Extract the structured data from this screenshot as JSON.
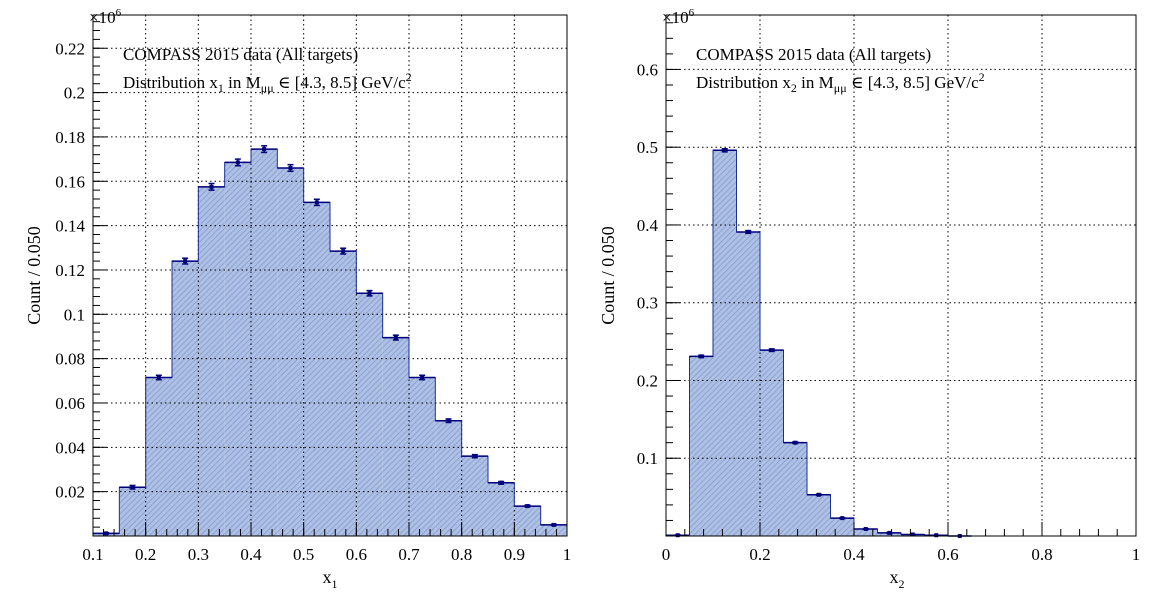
{
  "chart_data": [
    {
      "type": "bar",
      "panel": "left",
      "xlim": [
        0.1,
        1.0
      ],
      "ylim": [
        0,
        0.235
      ],
      "y_multiplier": "×10",
      "y_multiplier_exp": "6",
      "ylabel": "Count / 0.050",
      "xlabel": "x",
      "xlabel_sub": "1",
      "grid": true,
      "legend_placement": "top-left",
      "legend": [
        {
          "main": "COMPASS 2015 data (All targets)"
        },
        {
          "main": "Distribution x",
          "sub": "1",
          "mid": " in M",
          "sub2": "μμ",
          "tail": " ∈ [4.3, 8.5] GeV/c",
          "sup": "2"
        }
      ],
      "xticks": [
        0.1,
        0.2,
        0.3,
        0.4,
        0.5,
        0.6,
        0.7,
        0.8,
        0.9,
        1.0
      ],
      "xtick_labels": [
        "0.1",
        "0.2",
        "0.3",
        "0.4",
        "0.5",
        "0.6",
        "0.7",
        "0.8",
        "0.9",
        "1"
      ],
      "yticks": [
        0.02,
        0.04,
        0.06,
        0.08,
        0.1,
        0.12,
        0.14,
        0.16,
        0.18,
        0.2,
        0.22
      ],
      "ytick_labels": [
        "0.02",
        "0.04",
        "0.06",
        "0.08",
        "0.1",
        "0.12",
        "0.14",
        "0.16",
        "0.18",
        "0.2",
        "0.22"
      ],
      "bin_width": 0.05,
      "bins_lo": [
        0.1,
        0.15,
        0.2,
        0.25,
        0.3,
        0.35,
        0.4,
        0.45,
        0.5,
        0.55,
        0.6,
        0.65,
        0.7,
        0.75,
        0.8,
        0.85,
        0.9,
        0.95
      ],
      "values": [
        0.0012,
        0.022,
        0.0715,
        0.124,
        0.1575,
        0.1685,
        0.1745,
        0.166,
        0.1505,
        0.1285,
        0.1095,
        0.0895,
        0.0715,
        0.052,
        0.036,
        0.024,
        0.0135,
        0.005
      ],
      "errors": [
        0.0003,
        0.0008,
        0.001,
        0.0013,
        0.0015,
        0.0015,
        0.0015,
        0.0015,
        0.0014,
        0.0013,
        0.0012,
        0.0011,
        0.001,
        0.0008,
        0.0007,
        0.0006,
        0.0004,
        0.0003
      ]
    },
    {
      "type": "bar",
      "panel": "right",
      "xlim": [
        0,
        1.0
      ],
      "ylim": [
        0,
        0.67
      ],
      "y_multiplier": "×10",
      "y_multiplier_exp": "6",
      "ylabel": "Count / 0.050",
      "xlabel": "x",
      "xlabel_sub": "2",
      "grid": true,
      "legend_placement": "top-left",
      "legend": [
        {
          "main": "COMPASS 2015 data (All targets)"
        },
        {
          "main": "Distribution x",
          "sub": "2",
          "mid": " in M",
          "sub2": "μμ",
          "tail": " ∈ [4.3, 8.5] GeV/c",
          "sup": "2"
        }
      ],
      "xticks": [
        0,
        0.2,
        0.4,
        0.6,
        0.8,
        1.0
      ],
      "xtick_labels": [
        "0",
        "0.2",
        "0.4",
        "0.6",
        "0.8",
        "1"
      ],
      "yticks": [
        0.1,
        0.2,
        0.3,
        0.4,
        0.5,
        0.6
      ],
      "ytick_labels": [
        "0.1",
        "0.2",
        "0.3",
        "0.4",
        "0.5",
        "0.6"
      ],
      "bin_width": 0.05,
      "bins_lo": [
        0.0,
        0.05,
        0.1,
        0.15,
        0.2,
        0.25,
        0.3,
        0.35,
        0.4,
        0.45,
        0.5,
        0.55,
        0.6
      ],
      "values": [
        0.001,
        0.231,
        0.496,
        0.391,
        0.239,
        0.12,
        0.053,
        0.023,
        0.009,
        0.004,
        0.002,
        0.001,
        0.0
      ],
      "errors": [
        0.0003,
        0.0015,
        0.002,
        0.0018,
        0.0015,
        0.001,
        0.0008,
        0.0005,
        0.0004,
        0.0003,
        0.0002,
        0.0001,
        0.0
      ]
    }
  ],
  "colors": {
    "fill": "#aec0e4",
    "hatch": "#7d93c9",
    "outline": "#1b2f96",
    "error": "#00007a",
    "grid": "#000000"
  }
}
